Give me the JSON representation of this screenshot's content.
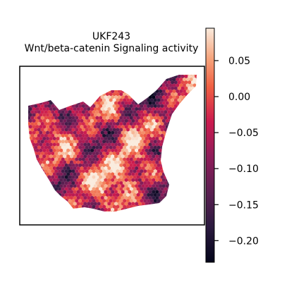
{
  "chart_data": {
    "type": "heatmap",
    "title_line1": "UKF243",
    "title_line2": "Wnt/beta-catenin Signaling activity",
    "xlabel": "",
    "ylabel": "",
    "colorbar": {
      "colormap": "rocket",
      "range": [
        -0.23,
        0.095
      ],
      "ticks": [
        0.05,
        0.0,
        -0.05,
        -0.1,
        -0.15,
        -0.2
      ],
      "tick_labels": [
        "0.05",
        "0.00",
        "−0.05",
        "−0.10",
        "−0.15",
        "−0.20"
      ]
    },
    "grid": false,
    "legend": "colorbar-right"
  }
}
